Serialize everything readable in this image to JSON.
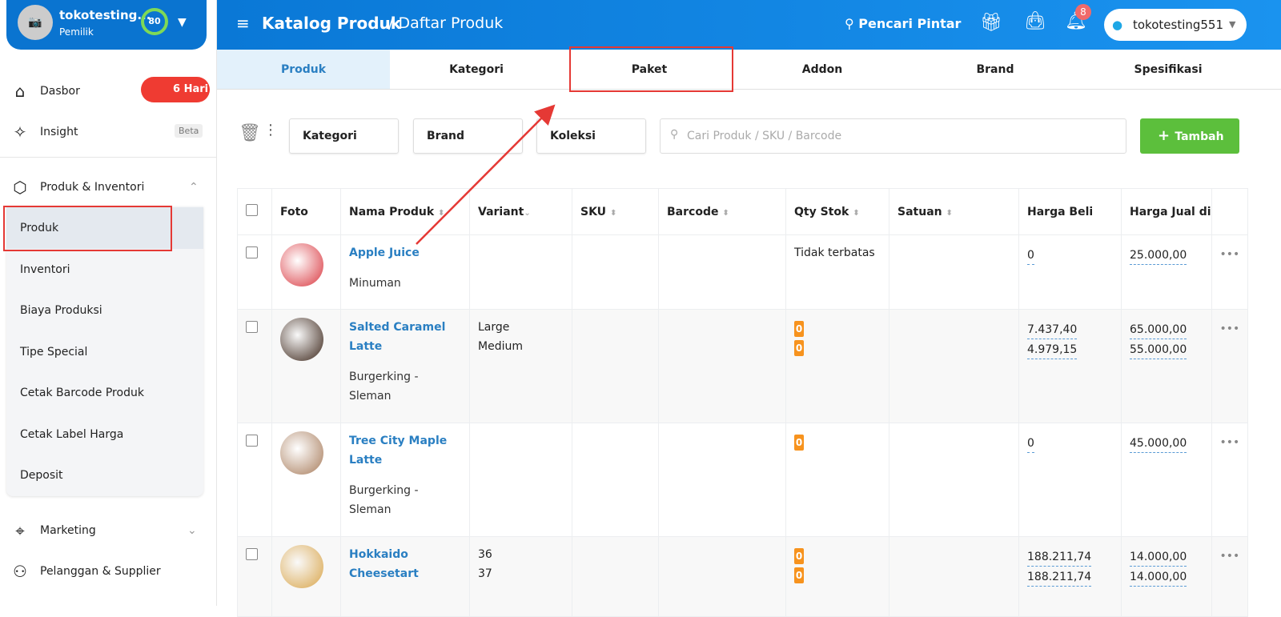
{
  "user": {
    "name": "tokotesting...",
    "role": "Pemilik",
    "score": "80"
  },
  "sidebar": {
    "items": [
      {
        "label": "Dasbor",
        "icon": "home-icon",
        "badge": "6 Hari"
      },
      {
        "label": "Insight",
        "icon": "sparkle-icon",
        "badge": "Beta"
      },
      {
        "label": "Produk & Inventori",
        "icon": "box-icon"
      },
      {
        "label": "Marketing",
        "icon": "tag-icon"
      },
      {
        "label": "Pelanggan & Supplier",
        "icon": "users-icon"
      }
    ],
    "submenu": [
      "Produk",
      "Inventori",
      "Biaya Produksi",
      "Tipe Special",
      "Cetak Barcode Produk",
      "Cetak Label Harga",
      "Deposit"
    ]
  },
  "header": {
    "title": "Katalog Produk",
    "subtitle": "/ Daftar Produk",
    "smart_search": "Pencari Pintar",
    "notif_count": "8",
    "store": "tokotesting551"
  },
  "tabs": [
    "Produk",
    "Kategori",
    "Paket",
    "Addon",
    "Brand",
    "Spesifikasi"
  ],
  "toolbar": {
    "filters": [
      "Kategori",
      "Brand",
      "Koleksi"
    ],
    "search_placeholder": "Cari Produk / SKU / Barcode",
    "add_label": "Tambah"
  },
  "table": {
    "headers": [
      "Foto",
      "Nama Produk",
      "Variant",
      "SKU",
      "Barcode",
      "Qty Stok",
      "Satuan",
      "Harga Beli",
      "Harga Jual di"
    ],
    "rows": [
      {
        "name": "Apple Juice",
        "category": "Minuman",
        "variants": [],
        "qty": "Tidak terbatas",
        "beli": [
          "0"
        ],
        "jual": [
          "25.000,00"
        ],
        "color": "#d9363e"
      },
      {
        "name": "Salted Caramel Latte",
        "category": "Burgerking - Sleman",
        "variants": [
          "Large",
          "Medium"
        ],
        "qty": [
          "0",
          "0"
        ],
        "beli": [
          "7.437,40",
          "4.979,15"
        ],
        "jual": [
          "65.000,00",
          "55.000,00"
        ],
        "color": "#3a2418"
      },
      {
        "name": "Tree City Maple Latte",
        "category": "Burgerking - Sleman",
        "variants": [],
        "qty": [
          "0"
        ],
        "beli": [
          "0"
        ],
        "jual": [
          "45.000,00"
        ],
        "color": "#a77b5a"
      },
      {
        "name": "Hokkaido Cheesetart",
        "category": "",
        "variants": [
          "36",
          "37"
        ],
        "qty": [
          "0",
          "0"
        ],
        "beli": [
          "188.211,74",
          "188.211,74"
        ],
        "jual": [
          "14.000,00",
          "14.000,00"
        ],
        "color": "#d9a54a"
      }
    ]
  },
  "colors": {
    "primary": "#0a78d6",
    "add": "#5cbf3c",
    "stock_badge": "#f7931e",
    "highlight": "#e53935"
  }
}
